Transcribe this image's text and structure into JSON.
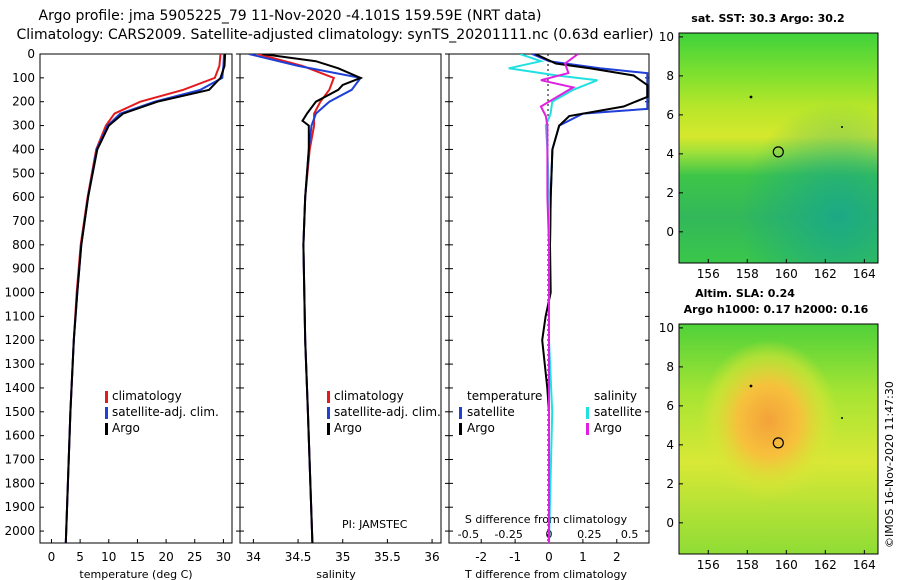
{
  "header": {
    "line1": "Argo profile: jma 5905225_79 11-Nov-2020 -4.101S 159.59E (NRT data)",
    "line2": "Climatology: CARS2009. Satellite-adjusted climatology: synTS_20201111.nc (0.63d earlier)"
  },
  "colors": {
    "climatology": "#e41a1c",
    "satellite_adj": "#1f3fd6",
    "argo": "#000000",
    "salinity_satellite": "#22e0e0",
    "salinity_argo": "#e020e0"
  },
  "depth_ticks": [
    "0",
    "100",
    "200",
    "300",
    "400",
    "500",
    "600",
    "700",
    "800",
    "900",
    "1000",
    "1100",
    "1200",
    "1300",
    "1400",
    "1500",
    "1600",
    "1700",
    "1800",
    "1900",
    "2000"
  ],
  "chart_data": [
    {
      "type": "line",
      "name": "temperature",
      "xlabel": "temperature (deg C)",
      "xlim": [
        -2,
        31.5
      ],
      "ylim": [
        0,
        2050
      ],
      "xticks": [
        "0",
        "5",
        "10",
        "15",
        "20",
        "25",
        "30"
      ],
      "xtick_values": [
        0,
        5,
        10,
        15,
        20,
        25,
        30
      ],
      "legend": [
        "climatology",
        "satellite-adj. clim.",
        "Argo"
      ],
      "series": [
        {
          "name": "climatology",
          "color_key": "climatology",
          "depth": [
            0,
            50,
            100,
            150,
            200,
            250,
            300,
            400,
            600,
            800,
            1000,
            1200,
            1500,
            2050
          ],
          "values": [
            29.5,
            29.3,
            28.5,
            23.0,
            15.5,
            11.0,
            9.5,
            7.8,
            6.3,
            5.1,
            4.4,
            3.9,
            3.3,
            2.5
          ]
        },
        {
          "name": "satellite-adj. clim.",
          "color_key": "satellite_adj",
          "depth": [
            0,
            50,
            100,
            150,
            200,
            250,
            300,
            400,
            600,
            800,
            1000,
            1200,
            1500,
            2050
          ],
          "values": [
            30.1,
            30.0,
            29.8,
            26.0,
            18.0,
            12.0,
            9.8,
            7.9,
            6.4,
            5.2,
            4.5,
            3.9,
            3.3,
            2.5
          ]
        },
        {
          "name": "Argo",
          "color_key": "argo",
          "depth": [
            0,
            50,
            100,
            150,
            200,
            250,
            300,
            400,
            600,
            800,
            1000,
            1200,
            1500,
            2050
          ],
          "values": [
            30.3,
            30.2,
            29.5,
            27.5,
            18.5,
            12.5,
            10.0,
            8.0,
            6.4,
            5.2,
            4.5,
            3.9,
            3.3,
            2.5
          ]
        }
      ]
    },
    {
      "type": "line",
      "name": "salinity",
      "xlabel": "salinity",
      "xlim": [
        33.85,
        36.1
      ],
      "ylim": [
        0,
        2050
      ],
      "xticks": [
        "34",
        "34.5",
        "35",
        "35.5",
        "36"
      ],
      "xtick_values": [
        34,
        34.5,
        35,
        35.5,
        36
      ],
      "legend": [
        "climatology",
        "satellite-adj. clim.",
        "Argo"
      ],
      "annotation": "PI: JAMSTEC",
      "series": [
        {
          "name": "climatology",
          "color_key": "climatology",
          "depth": [
            0,
            50,
            100,
            150,
            200,
            250,
            300,
            400,
            600,
            800,
            1000,
            1200,
            1500,
            2050
          ],
          "values": [
            34.05,
            34.55,
            34.9,
            34.85,
            34.75,
            34.68,
            34.68,
            34.63,
            34.58,
            34.56,
            34.57,
            34.58,
            34.61,
            34.66
          ]
        },
        {
          "name": "satellite-adj. clim.",
          "color_key": "satellite_adj",
          "depth": [
            0,
            50,
            100,
            150,
            200,
            250,
            300,
            400,
            600,
            800,
            1000,
            1200,
            1500,
            2050
          ],
          "values": [
            33.95,
            34.5,
            35.2,
            35.1,
            34.85,
            34.7,
            34.65,
            34.62,
            34.58,
            34.56,
            34.57,
            34.58,
            34.61,
            34.66
          ]
        },
        {
          "name": "Argo",
          "color_key": "argo",
          "depth": [
            0,
            30,
            60,
            100,
            130,
            150,
            200,
            250,
            280,
            300,
            400,
            600,
            800,
            1000,
            1200,
            1500,
            2050
          ],
          "values": [
            34.1,
            34.7,
            34.95,
            35.2,
            35.0,
            34.95,
            34.7,
            34.6,
            34.55,
            34.62,
            34.62,
            34.58,
            34.56,
            34.57,
            34.58,
            34.61,
            34.66
          ]
        }
      ]
    },
    {
      "type": "line",
      "name": "difference from climatology",
      "xlabel": "T difference from climatology",
      "xlim": [
        -2.95,
        2.95
      ],
      "ylim": [
        0,
        2050
      ],
      "xticks": [
        "-2",
        "-1",
        "0",
        "1",
        "2"
      ],
      "xtick_values": [
        -2,
        -1,
        0,
        1,
        2
      ],
      "s_axis_label": "S difference from climatology",
      "s_ticks": [
        "-0.5",
        "-0.25",
        "0",
        "0.25",
        "0.5"
      ],
      "s_tick_values": [
        -0.5,
        -0.25,
        0,
        0.25,
        0.5
      ],
      "legend_temperature": {
        "heading": "temperature",
        "items": [
          "satellite",
          "Argo"
        ]
      },
      "legend_salinity": {
        "heading": "salinity",
        "items": [
          "satellite",
          "Argo"
        ]
      },
      "series": [
        {
          "name": "temperature satellite",
          "color_key": "satellite_adj",
          "units": "T",
          "depth": [
            0,
            30,
            60,
            80,
            100,
            150,
            200,
            230,
            250,
            300,
            400,
            600,
            800,
            1000,
            1200,
            1500,
            2050
          ],
          "values": [
            -0.5,
            0.0,
            1.5,
            2.9,
            2.9,
            2.9,
            2.9,
            2.9,
            1.0,
            0.3,
            0.1,
            0.05,
            0.03,
            0.0,
            0.0,
            0.0,
            0.0
          ]
        },
        {
          "name": "temperature Argo",
          "color_key": "argo",
          "units": "T",
          "depth": [
            0,
            40,
            60,
            90,
            130,
            180,
            220,
            260,
            300,
            400,
            600,
            800,
            1000,
            1100,
            1200,
            1400,
            1500,
            1600,
            2050
          ],
          "values": [
            -0.4,
            0.2,
            1.2,
            2.5,
            2.9,
            2.9,
            2.2,
            0.6,
            0.3,
            0.1,
            0.05,
            0.03,
            0.05,
            -0.1,
            -0.2,
            -0.05,
            0.0,
            0.0,
            0.0
          ]
        },
        {
          "name": "salinity satellite",
          "color_key": "salinity_satellite",
          "units": "S",
          "depth": [
            0,
            30,
            60,
            90,
            110,
            150,
            200,
            250,
            300,
            400,
            600,
            800,
            1000,
            1200,
            1500,
            2050
          ],
          "values": [
            -0.18,
            -0.05,
            -0.25,
            0.05,
            0.3,
            0.15,
            0.02,
            0.01,
            -0.02,
            -0.01,
            0.0,
            0.0,
            0.0,
            0.0,
            0.02,
            0.0
          ]
        },
        {
          "name": "salinity Argo",
          "color_key": "salinity_argo",
          "units": "S",
          "depth": [
            0,
            40,
            80,
            110,
            140,
            180,
            220,
            260,
            300,
            400,
            600,
            800,
            1000,
            1200,
            1500,
            2050
          ],
          "values": [
            0.18,
            0.1,
            0.12,
            -0.05,
            0.15,
            0.05,
            -0.05,
            -0.02,
            -0.01,
            -0.01,
            -0.01,
            0.0,
            0.0,
            0.0,
            0.0,
            0.0
          ]
        }
      ]
    },
    {
      "type": "heatmap",
      "name": "satellite SST map",
      "title": "sat. SST: 30.3 Argo: 30.2",
      "xticks": [
        "156",
        "158",
        "160",
        "162",
        "164"
      ],
      "xtick_values": [
        156,
        158,
        160,
        162,
        164
      ],
      "yticks": [
        "10",
        "8",
        "6",
        "4",
        "2",
        "0"
      ],
      "ytick_values": [
        10,
        8,
        6,
        4,
        2,
        0
      ],
      "xlim": [
        154.5,
        164.7
      ],
      "ylim": [
        -1.6,
        10.2
      ],
      "float_position": {
        "lon": 159.59,
        "lat": 4.101
      }
    },
    {
      "type": "heatmap",
      "name": "altimetry SLA map",
      "title": "Altim. SLA: 0.24",
      "subtitle": "Argo h1000: 0.17 h2000: 0.16",
      "xticks": [
        "156",
        "158",
        "160",
        "162",
        "164"
      ],
      "xtick_values": [
        156,
        158,
        160,
        162,
        164
      ],
      "yticks": [
        "10",
        "8",
        "6",
        "4",
        "2",
        "0"
      ],
      "ytick_values": [
        10,
        8,
        6,
        4,
        2,
        0
      ],
      "xlim": [
        154.5,
        164.7
      ],
      "ylim": [
        -1.6,
        10.2
      ],
      "float_position": {
        "lon": 159.59,
        "lat": 4.101
      }
    }
  ],
  "credit": "©IMOS 16-Nov-2020 11:47:30"
}
